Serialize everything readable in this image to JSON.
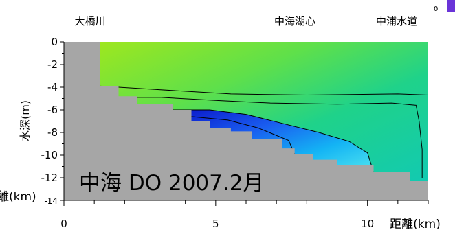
{
  "chart_data": {
    "type": "heatmap",
    "title": "中海 DO 2007.2月",
    "xlabel": "距離(km)",
    "ylabel": "水深(m)",
    "xlim": [
      0,
      12
    ],
    "ylim": [
      -14,
      0
    ],
    "x_ticks": [
      "0",
      "5",
      "10"
    ],
    "y_ticks": [
      "0",
      "-2",
      "-4",
      "-6",
      "-8",
      "-10",
      "-12",
      "-14"
    ],
    "colorbar_ticks": [
      "0"
    ],
    "colorbar_color": "#6a34d8",
    "stations": [
      {
        "label": "大橋川",
        "x": 0.4
      },
      {
        "label": "中海湖心",
        "x": 7.8
      },
      {
        "label": "中浦水道",
        "x": 10.6
      }
    ],
    "stray_label": "離(km)",
    "colors": {
      "land": "#a6a6a6",
      "high": "#9ee312",
      "mid": "#1bd68c",
      "low": "#0a14c8"
    },
    "bathymetry": [
      [
        1.2,
        -3.9
      ],
      [
        1.8,
        -4.8
      ],
      [
        2.4,
        -5.5
      ],
      [
        3.6,
        -6.0
      ],
      [
        4.2,
        -7.0
      ],
      [
        4.8,
        -7.6
      ],
      [
        5.5,
        -7.9
      ],
      [
        6.2,
        -8.6
      ],
      [
        7.2,
        -9.4
      ],
      [
        7.6,
        -9.9
      ],
      [
        8.2,
        -10.4
      ],
      [
        9.0,
        -10.9
      ],
      [
        10.2,
        -11.5
      ],
      [
        11.4,
        -12.3
      ],
      [
        12.0,
        -12.3
      ]
    ],
    "contours": [
      [
        [
          1.2,
          -3.9
        ],
        [
          3.0,
          -4.2
        ],
        [
          5.5,
          -4.6
        ],
        [
          8.0,
          -4.7
        ],
        [
          11.0,
          -4.6
        ],
        [
          12.0,
          -4.7
        ]
      ],
      [
        [
          1.8,
          -4.9
        ],
        [
          3.2,
          -4.9
        ],
        [
          5.2,
          -5.2
        ],
        [
          6.8,
          -5.4
        ],
        [
          9.0,
          -5.5
        ],
        [
          10.8,
          -5.4
        ],
        [
          11.6,
          -5.6
        ],
        [
          11.7,
          -7.0
        ],
        [
          11.8,
          -9.5
        ],
        [
          11.8,
          -12.0
        ]
      ],
      [
        [
          3.6,
          -6.0
        ],
        [
          4.8,
          -6.0
        ],
        [
          6.0,
          -6.4
        ],
        [
          7.2,
          -7.2
        ],
        [
          8.4,
          -8.0
        ],
        [
          9.4,
          -8.8
        ],
        [
          10.0,
          -9.8
        ],
        [
          10.2,
          -11.5
        ]
      ],
      [
        [
          4.2,
          -6.6
        ],
        [
          5.4,
          -6.9
        ],
        [
          6.4,
          -7.6
        ],
        [
          7.4,
          -8.7
        ],
        [
          7.6,
          -9.9
        ]
      ]
    ]
  }
}
